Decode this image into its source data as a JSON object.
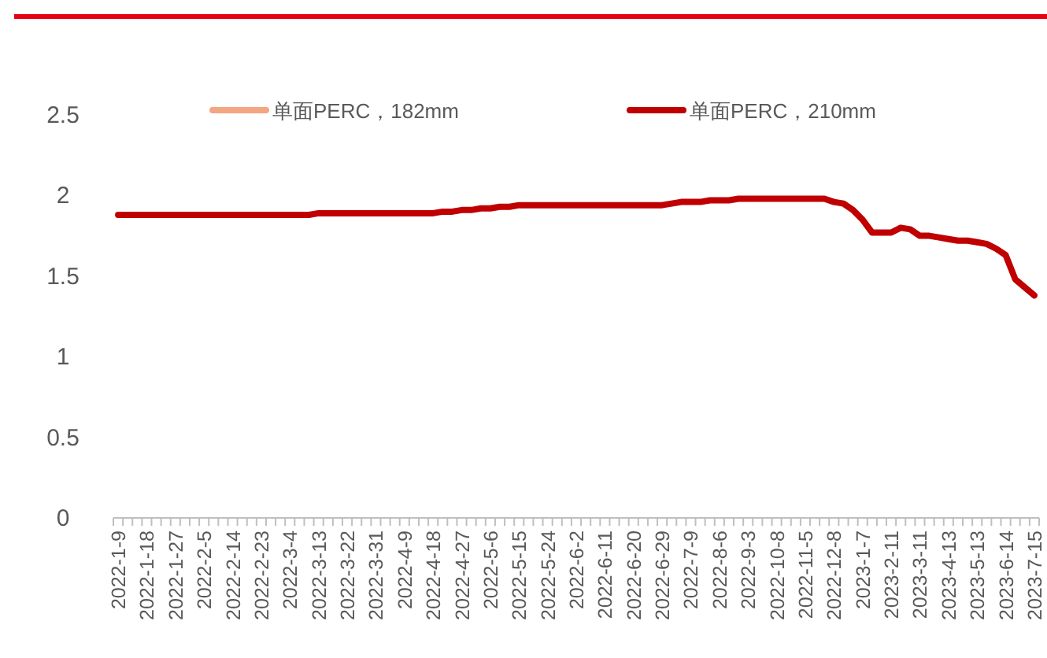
{
  "chart_data": {
    "type": "line",
    "categories": [
      "2022-1-9",
      null,
      null,
      "2022-1-18",
      null,
      null,
      "2022-1-27",
      null,
      null,
      "2022-2-5",
      null,
      null,
      "2022-2-14",
      null,
      null,
      "2022-2-23",
      null,
      null,
      "2022-3-4",
      null,
      null,
      "2022-3-13",
      null,
      null,
      "2022-3-22",
      null,
      null,
      "2022-3-31",
      null,
      null,
      "2022-4-9",
      null,
      null,
      "2022-4-18",
      null,
      null,
      "2022-4-27",
      null,
      null,
      "2022-5-6",
      null,
      null,
      "2022-5-15",
      null,
      null,
      "2022-5-24",
      null,
      null,
      "2022-6-2",
      null,
      null,
      "2022-6-11",
      null,
      null,
      "2022-6-20",
      null,
      null,
      "2022-6-29",
      null,
      null,
      "2022-7-9",
      null,
      null,
      "2022-8-6",
      null,
      null,
      "2022-9-3",
      null,
      null,
      "2022-10-8",
      null,
      null,
      "2022-11-5",
      null,
      null,
      "2022-12-8",
      null,
      null,
      "2023-1-7",
      null,
      null,
      "2023-2-11",
      null,
      null,
      "2023-3-11",
      null,
      null,
      "2023-4-13",
      null,
      null,
      "2023-5-13",
      null,
      null,
      "2023-6-14",
      null,
      null,
      "2023-7-15"
    ],
    "series": [
      {
        "name": "单面PERC，182mm",
        "color": "#f4a582",
        "values": [
          null,
          null,
          null,
          null,
          null,
          null,
          null,
          null,
          null,
          null,
          null,
          null,
          null,
          null,
          null,
          null,
          null,
          null,
          null,
          null,
          null,
          null,
          null,
          null,
          null,
          null,
          null,
          null,
          null,
          null,
          null,
          null,
          null,
          null,
          null,
          null,
          null,
          null,
          null,
          null,
          null,
          null,
          null,
          null,
          null,
          null,
          null,
          null,
          null,
          null,
          null,
          null,
          null,
          null,
          null,
          null,
          null,
          null,
          null,
          null,
          null,
          null,
          null,
          null,
          null,
          null,
          null,
          null,
          null,
          null,
          null,
          null,
          null,
          null,
          null,
          null,
          null,
          null,
          null,
          null,
          null,
          null,
          null,
          null,
          null,
          null,
          null,
          null,
          null,
          null,
          null,
          null,
          null,
          null,
          null,
          null,
          null
        ]
      },
      {
        "name": "单面PERC，210mm",
        "color": "#c00000",
        "values": [
          1.88,
          1.88,
          1.88,
          1.88,
          1.88,
          1.88,
          1.88,
          1.88,
          1.88,
          1.88,
          1.88,
          1.88,
          1.88,
          1.88,
          1.88,
          1.88,
          1.88,
          1.88,
          1.88,
          1.88,
          1.88,
          1.89,
          1.89,
          1.89,
          1.89,
          1.89,
          1.89,
          1.89,
          1.89,
          1.89,
          1.89,
          1.89,
          1.89,
          1.89,
          1.9,
          1.9,
          1.91,
          1.91,
          1.92,
          1.92,
          1.93,
          1.93,
          1.94,
          1.94,
          1.94,
          1.94,
          1.94,
          1.94,
          1.94,
          1.94,
          1.94,
          1.94,
          1.94,
          1.94,
          1.94,
          1.94,
          1.94,
          1.94,
          1.95,
          1.96,
          1.96,
          1.96,
          1.97,
          1.97,
          1.97,
          1.98,
          1.98,
          1.98,
          1.98,
          1.98,
          1.98,
          1.98,
          1.98,
          1.98,
          1.98,
          1.96,
          1.95,
          1.91,
          1.85,
          1.77,
          1.77,
          1.77,
          1.8,
          1.79,
          1.75,
          1.75,
          1.74,
          1.73,
          1.72,
          1.72,
          1.71,
          1.7,
          1.67,
          1.63,
          1.48,
          1.43,
          1.38
        ]
      }
    ],
    "ylim": [
      0,
      2.5
    ],
    "yticks": [
      0,
      0.5,
      1,
      1.5,
      2,
      2.5
    ],
    "grid": false,
    "legend": "top",
    "marker": "none",
    "line_style": "solid"
  }
}
